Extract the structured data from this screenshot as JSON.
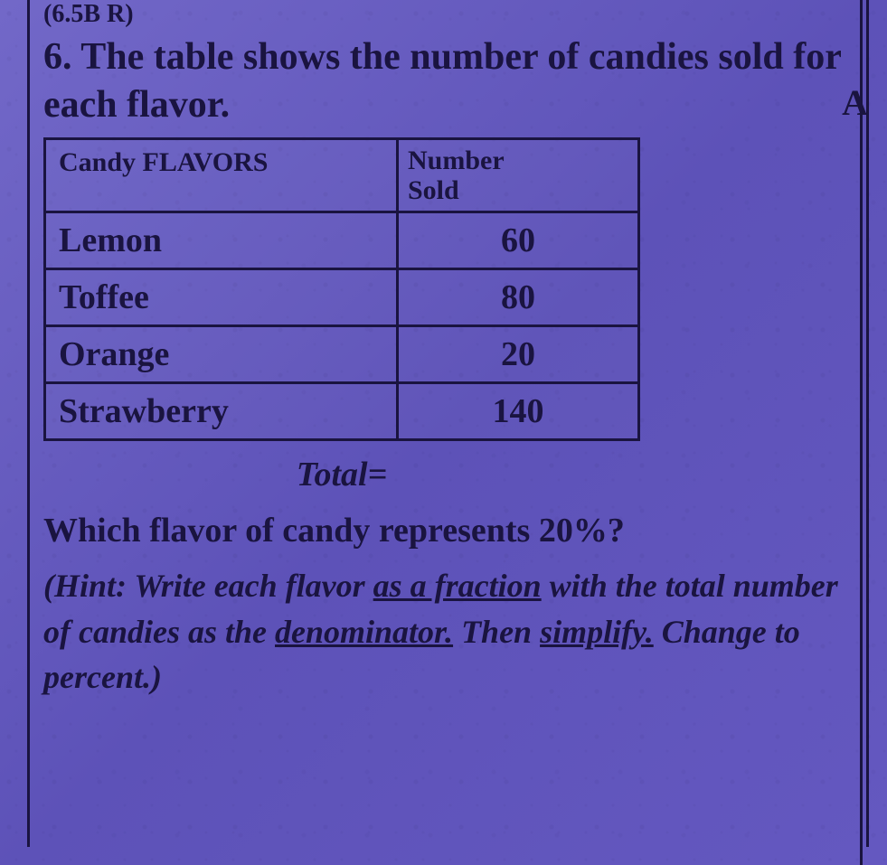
{
  "standard_ref": "(6.5B R)",
  "question": {
    "number": "6.",
    "text_line1": "The table shows the number of",
    "text_line2": "candies sold for each flavor."
  },
  "table": {
    "header_left": "Candy FLAVORS",
    "header_right_line1": "Number",
    "header_right_line2": "Sold",
    "rows": [
      {
        "flavor": "Lemon",
        "sold": "60"
      },
      {
        "flavor": "Toffee",
        "sold": "80"
      },
      {
        "flavor": "Orange",
        "sold": "20"
      },
      {
        "flavor": "Strawberry",
        "sold": "140"
      }
    ]
  },
  "total_label": "Total=",
  "followup": "Which flavor of candy represents 20%?",
  "hint": {
    "prefix": "(Hint:",
    "part1": " Write each flavor ",
    "underlined1": "as a fraction",
    "part2": " with the total number of candies as the ",
    "underlined2": "denominator.",
    "part3": " Then ",
    "underlined3": "simplify.",
    "part4": " Change to percent.)"
  },
  "edge_letter": "A",
  "colors": {
    "background": "#6a5ec2",
    "text": "#1a1440",
    "border": "#1a1440"
  }
}
